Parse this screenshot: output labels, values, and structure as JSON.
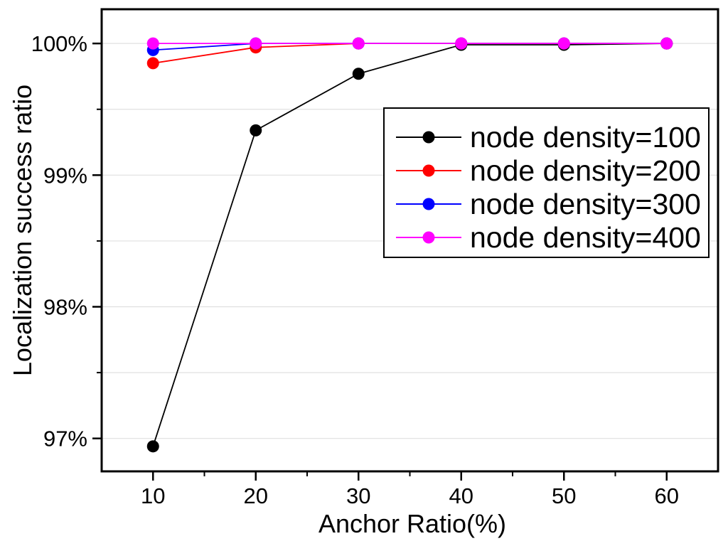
{
  "figure": {
    "xlabel": "Anchor Ratio(%)",
    "ylabel": "Localization success ratio"
  },
  "chart_data": {
    "type": "line",
    "title": "",
    "xlabel": "Anchor Ratio(%)",
    "ylabel": "Localization success ratio",
    "x": [
      10,
      20,
      30,
      40,
      50,
      60
    ],
    "x_tick_labels": [
      "10",
      "20",
      "30",
      "40",
      "50",
      "60"
    ],
    "x_minor_ticks": [
      15,
      25,
      35,
      45,
      55
    ],
    "y_ticks": [
      {
        "value": 100,
        "label": "100%"
      },
      {
        "value": 99,
        "label": "99%"
      },
      {
        "value": 98,
        "label": "98%"
      },
      {
        "value": 97,
        "label": "97%"
      }
    ],
    "y_minor_ticks": [
      99.5,
      98.5,
      97.5
    ],
    "xlim": [
      5,
      65
    ],
    "ylim": [
      96.75,
      100.26
    ],
    "grid": "horizontal-major-and-minor",
    "legend": {
      "position": "upper-right-inside",
      "entries": [
        "node density=100",
        "node density=200",
        "node density=300",
        "node density=400"
      ]
    },
    "series": [
      {
        "name": "node density=100",
        "color": "#000000",
        "marker": "circle",
        "values": [
          96.94,
          99.34,
          99.77,
          99.99,
          99.99,
          100.0
        ]
      },
      {
        "name": "node density=200",
        "color": "#FF0000",
        "marker": "circle",
        "values": [
          99.85,
          99.97,
          100.0,
          100.0,
          100.0,
          100.0
        ]
      },
      {
        "name": "node density=300",
        "color": "#0000FF",
        "marker": "circle",
        "values": [
          99.95,
          100.0,
          100.0,
          100.0,
          100.0,
          100.0
        ]
      },
      {
        "name": "node density=400",
        "color": "#FF00FF",
        "marker": "circle",
        "values": [
          100.0,
          100.0,
          100.0,
          100.0,
          100.0,
          100.0
        ]
      }
    ],
    "styles": {
      "grid_color": "#e0e0e0",
      "axis_color": "#000000",
      "background": "#ffffff"
    }
  }
}
